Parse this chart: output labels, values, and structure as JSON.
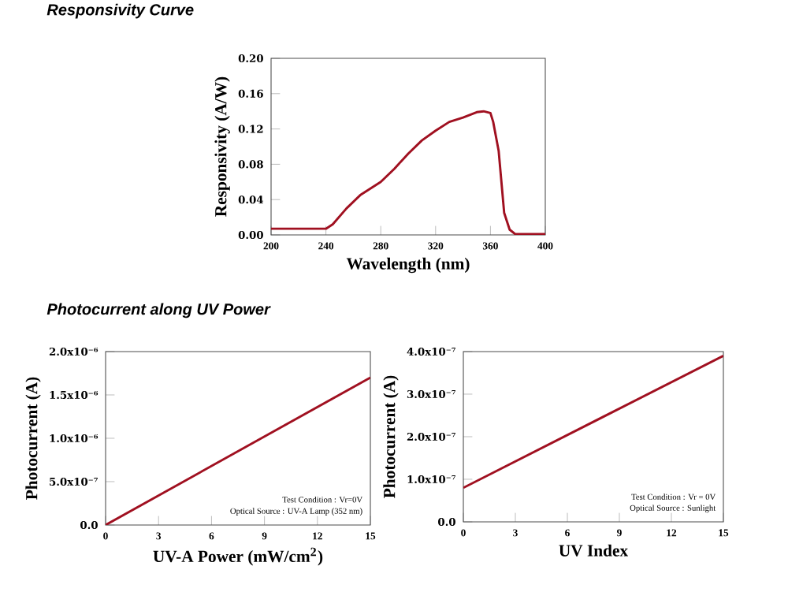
{
  "chart_data": [
    {
      "type": "line",
      "title": "Responsivity Curve",
      "xlabel": "Wavelength (nm)",
      "ylabel": "Responsivity (A/W)",
      "x": [
        200,
        240,
        245,
        255,
        265,
        280,
        290,
        300,
        310,
        320,
        330,
        340,
        350,
        355,
        360,
        362,
        366,
        370,
        374,
        378,
        400
      ],
      "series": [
        {
          "color": "#a01020",
          "values": [
            0.007,
            0.007,
            0.012,
            0.03,
            0.045,
            0.06,
            0.075,
            0.092,
            0.107,
            0.118,
            0.128,
            0.133,
            0.139,
            0.14,
            0.138,
            0.128,
            0.095,
            0.025,
            0.006,
            0.001,
            0.001
          ]
        }
      ],
      "xlim": [
        200,
        400
      ],
      "ylim": [
        0,
        0.2
      ],
      "xticks": [
        200,
        240,
        280,
        320,
        360,
        400
      ],
      "yticks": [
        {
          "value": 0,
          "label": "0.00"
        },
        {
          "value": 0.04,
          "label": "0.04"
        },
        {
          "value": 0.08,
          "label": "0.08"
        },
        {
          "value": 0.12,
          "label": "0.12"
        },
        {
          "value": 0.16,
          "label": "0.16"
        },
        {
          "value": 0.2,
          "label": "0.20"
        }
      ]
    },
    {
      "type": "line",
      "title": "Photocurrent along UV Power",
      "xlabel": "UV-A Power (mW/cm$^{2}$)",
      "ylabel": "Photocurrent (A)",
      "x": [
        0,
        15
      ],
      "series": [
        {
          "color": "#a01020",
          "values": [
            0,
            1.7e-06
          ]
        }
      ],
      "xlim": [
        0,
        15
      ],
      "ylim": [
        0,
        2e-06
      ],
      "xticks": [
        0,
        3,
        6,
        9,
        12,
        15
      ],
      "yticks": [
        {
          "value": 0,
          "label": "0.0"
        },
        {
          "value": 5e-07,
          "label": "5.0x10⁻⁷"
        },
        {
          "value": 1e-06,
          "label": "1.0x10⁻⁶"
        },
        {
          "value": 1.5e-06,
          "label": "1.5x10⁻⁶"
        },
        {
          "value": 2e-06,
          "label": "2.0x10⁻⁶"
        }
      ],
      "annotations": [
        "Test Condition : Vr=0V",
        "Optical Source : UV-A Lamp (352 nm)"
      ]
    },
    {
      "type": "line",
      "xlabel": "UV Index",
      "ylabel": "Photocurrent (A)",
      "x": [
        0,
        15
      ],
      "series": [
        {
          "color": "#a01020",
          "values": [
            8e-08,
            3.9e-07
          ]
        }
      ],
      "xlim": [
        0,
        15
      ],
      "ylim": [
        0,
        4e-07
      ],
      "xticks": [
        0,
        3,
        6,
        9,
        12,
        15
      ],
      "yticks": [
        {
          "value": 0,
          "label": "0.0"
        },
        {
          "value": 1e-07,
          "label": "1.0x10⁻⁷"
        },
        {
          "value": 2e-07,
          "label": "2.0x10⁻⁷"
        },
        {
          "value": 3e-07,
          "label": "3.0x10⁻⁷"
        },
        {
          "value": 4e-07,
          "label": "4.0x10⁻⁷"
        }
      ],
      "annotations": [
        "Test Condition : Vr = 0V",
        "Optical Source : Sunlight"
      ]
    }
  ]
}
